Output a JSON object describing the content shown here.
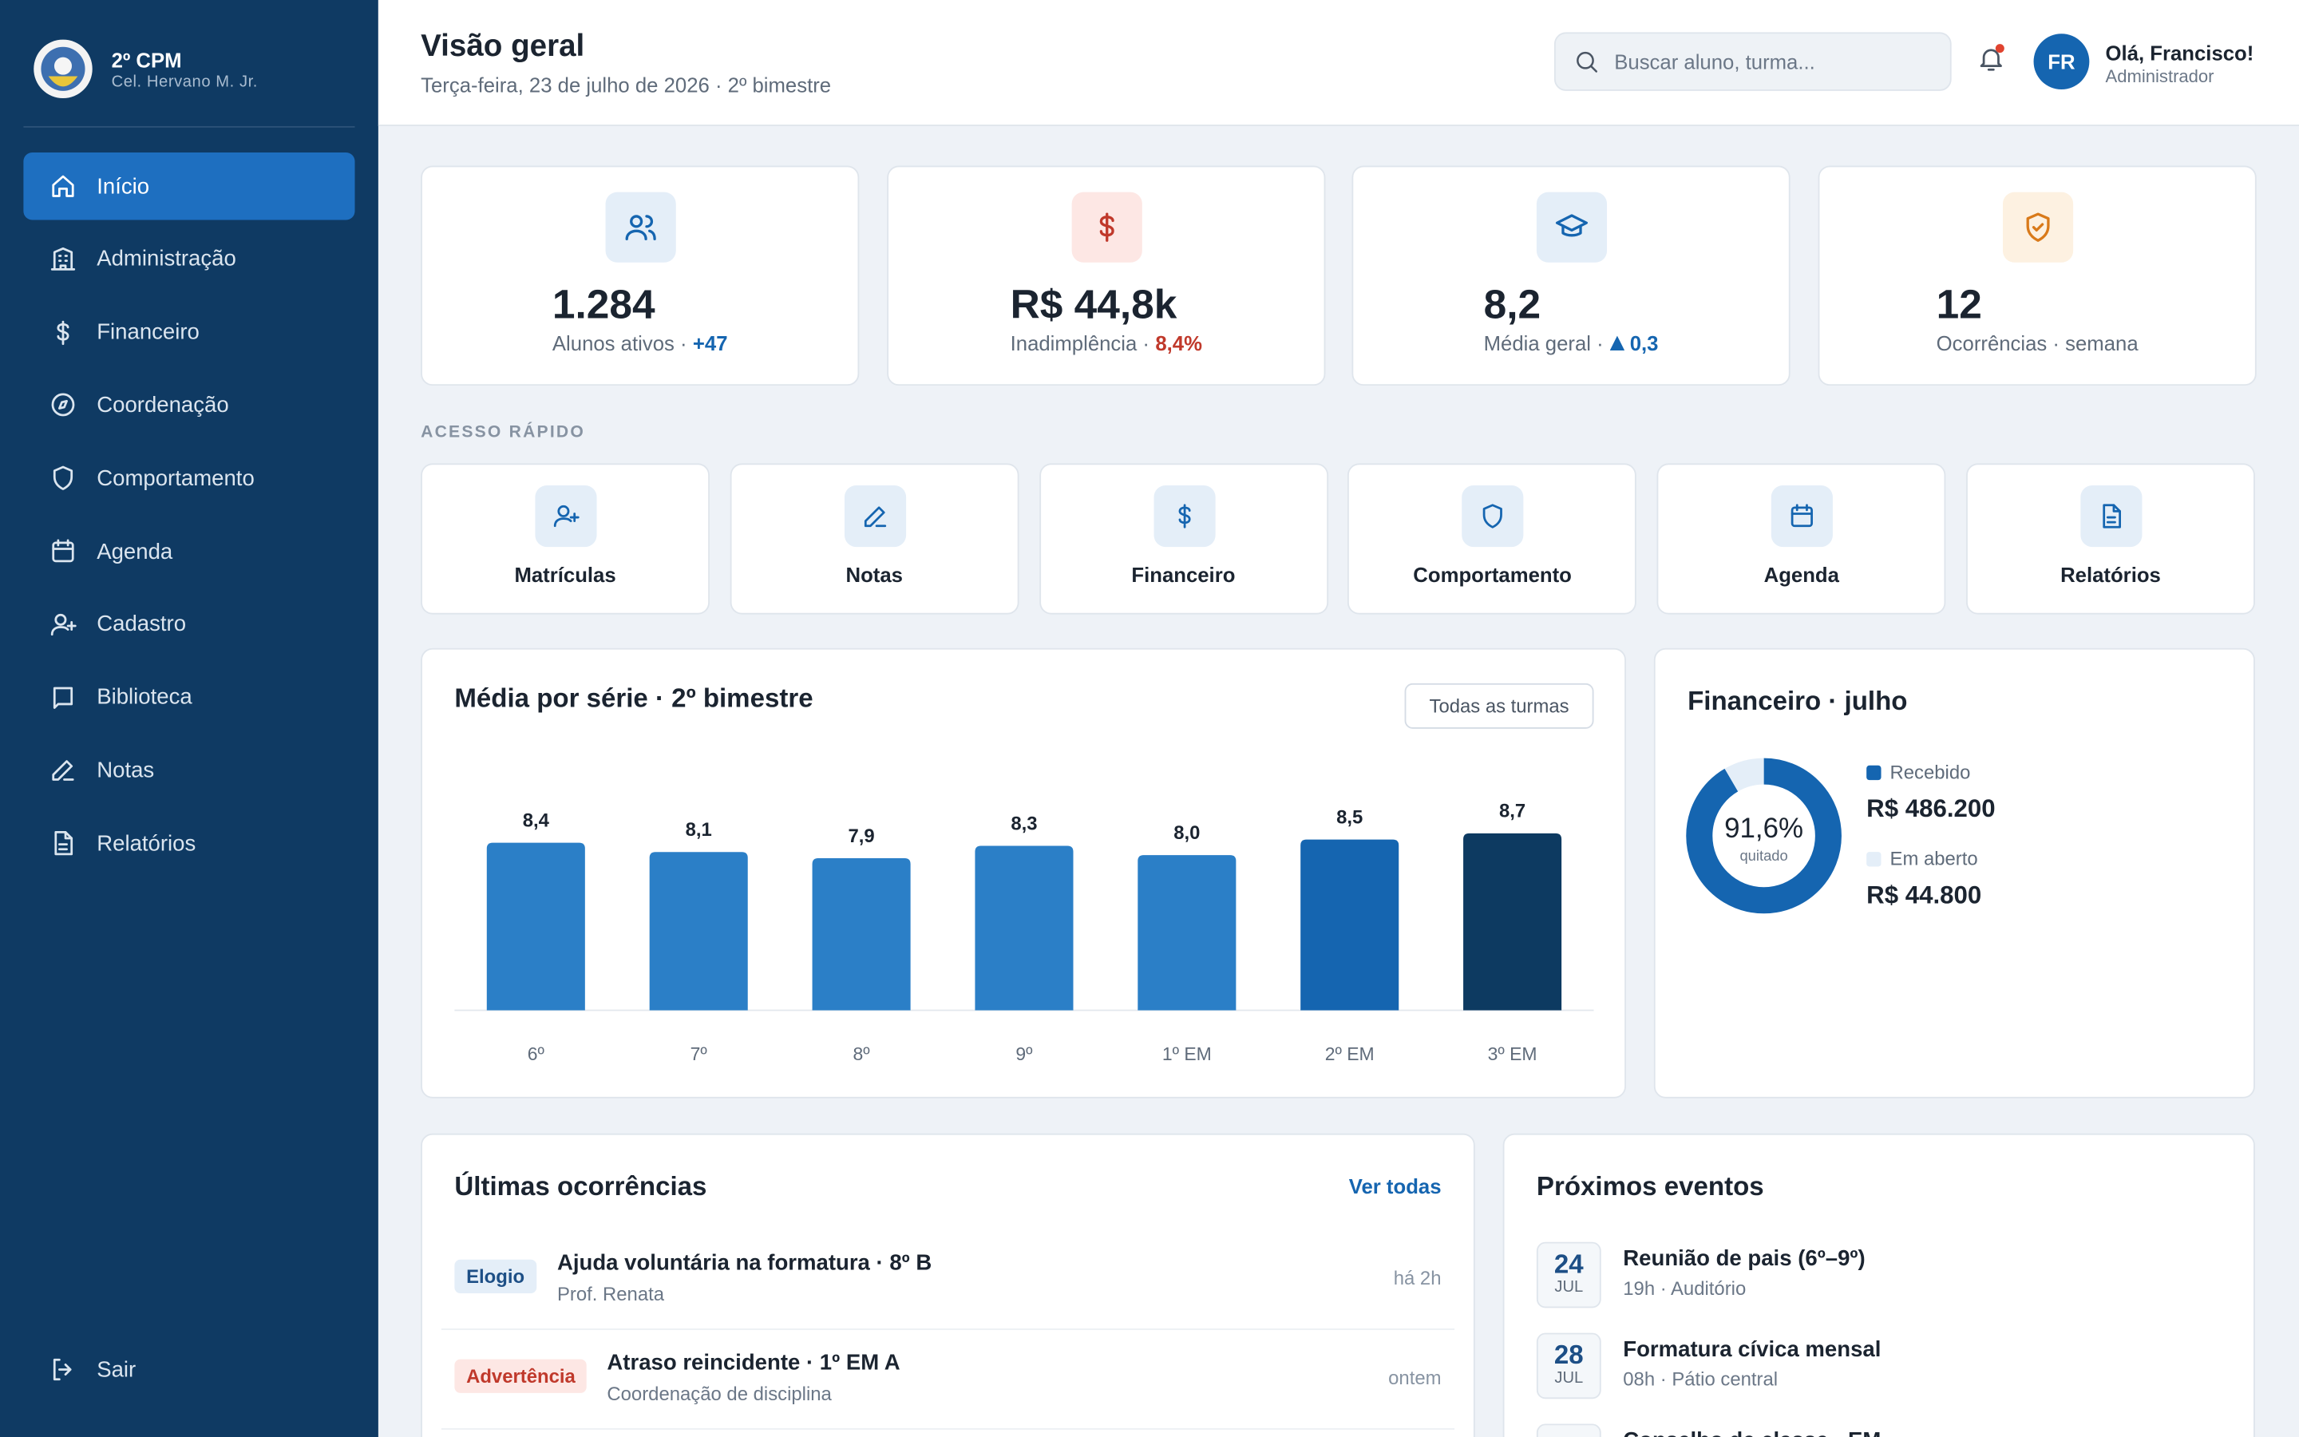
{
  "sidebar": {
    "brand": "2º CPM",
    "subtitle": "Cel. Hervano M. Jr.",
    "nav": [
      "Início",
      "Administração",
      "Financeiro",
      "Coordenação",
      "Comportamento",
      "Agenda",
      "Cadastro",
      "Biblioteca",
      "Notas",
      "Relatórios"
    ],
    "logout": "Sair"
  },
  "header": {
    "title": "Visão geral",
    "subtitle": "Terça-feira, 23 de julho de 2026 · 2º bimestre",
    "search_placeholder": "Buscar aluno, turma...",
    "avatar": "FR",
    "user_name": "Olá, Francisco!",
    "user_role": "Administrador"
  },
  "kpis": [
    {
      "value": "1.284",
      "label": "Alunos ativos ·",
      "delta": "+47"
    },
    {
      "value": "R$ 44,8k",
      "label": "Inadimplência ·",
      "delta": "8,4%"
    },
    {
      "value": "8,2",
      "label": "Média geral ·",
      "delta": "0,3"
    },
    {
      "value": "12",
      "label": "Ocorrências · semana"
    }
  ],
  "quick_access": {
    "title": "ACESSO RÁPIDO",
    "items": [
      "Matrículas",
      "Notas",
      "Financeiro",
      "Comportamento",
      "Agenda",
      "Relatórios"
    ]
  },
  "chart_data": [
    {
      "type": "bar",
      "title": "Média por série · 2º bimestre",
      "button": "Todas as turmas",
      "categories": [
        "6º",
        "7º",
        "8º",
        "9º",
        "1º EM",
        "2º EM",
        "3º EM"
      ],
      "values": [
        8.4,
        8.1,
        7.9,
        8.3,
        8.0,
        8.5,
        8.7
      ],
      "value_labels": [
        "8,4",
        "8,1",
        "7,9",
        "8,3",
        "8,0",
        "8,5",
        "8,7"
      ],
      "colors": [
        "#2b7fc7",
        "#2b7fc7",
        "#2b7fc7",
        "#2b7fc7",
        "#2b7fc7",
        "#1565b0",
        "#0d3a61"
      ],
      "ylim": [
        3,
        9
      ]
    },
    {
      "type": "donut",
      "title": "Financeiro · julho",
      "categories": [
        "Recebido",
        "Em aberto"
      ],
      "values": [
        486200,
        44800
      ],
      "value_labels": [
        "R$ 486.200",
        "R$ 44.800"
      ],
      "colors": [
        "#1565b0",
        "#e4eef8"
      ],
      "center_label": "91,6%",
      "center_caption": "quitado"
    }
  ],
  "occurrences": {
    "title": "Últimas ocorrências",
    "link": "Ver todas",
    "items": [
      {
        "tag": "Elogio",
        "title": "Ajuda voluntária na formatura · 8º B",
        "author": "Prof. Renata",
        "time": "há 2h"
      },
      {
        "tag": "Advertência",
        "title": "Atraso reincidente · 1º EM A",
        "author": "Coordenação de disciplina",
        "time": "ontem"
      }
    ]
  },
  "events": {
    "title": "Próximos eventos",
    "items": [
      {
        "day": "24",
        "month": "JUL",
        "title": "Reunião de pais (6º–9º)",
        "detail": "19h · Auditório"
      },
      {
        "day": "28",
        "month": "JUL",
        "title": "Formatura cívica mensal",
        "detail": "08h · Pátio central"
      },
      {
        "title": "Conselho de classe · EM"
      }
    ]
  }
}
